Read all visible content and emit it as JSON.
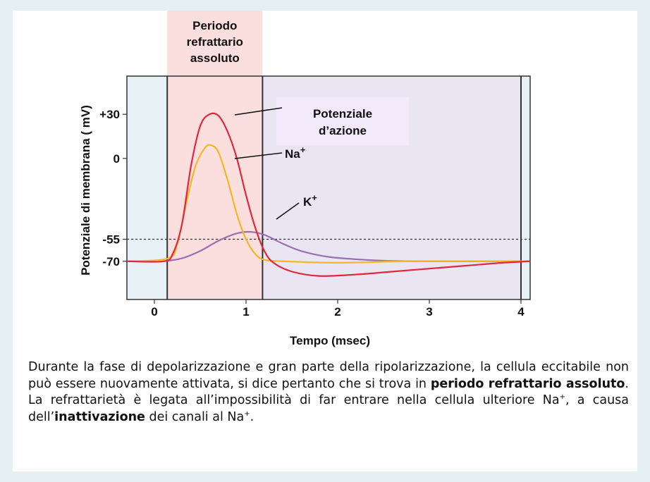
{
  "chart_data": {
    "type": "line",
    "xlabel": "Tempo (msec)",
    "ylabel": "Potenziale di membrana ( mV)",
    "xlim": [
      -0.3,
      4.1
    ],
    "ylim": [
      -96,
      56
    ],
    "x_ticks": [
      {
        "value": 0,
        "label": "0"
      },
      {
        "value": 1,
        "label": "1"
      },
      {
        "value": 2,
        "label": "2"
      },
      {
        "value": 3,
        "label": "3"
      },
      {
        "value": 4,
        "label": "4"
      }
    ],
    "y_ticks": [
      {
        "value": 30,
        "label": "+30"
      },
      {
        "value": 0,
        "label": "0"
      },
      {
        "value": -55,
        "label": "-55"
      },
      {
        "value": -70,
        "label": "-70"
      }
    ],
    "threshold": -55,
    "vertical_lines": [
      0.14,
      1.18,
      4.0
    ],
    "refractory_period": {
      "start": 0.14,
      "end": 1.18,
      "label": [
        "Periodo",
        "refrattario",
        "assoluto"
      ]
    },
    "relative_period": {
      "start": 1.18,
      "end": 4.0
    },
    "series": [
      {
        "name": "Potenziale d'azione",
        "color": "#e0283c",
        "points": [
          [
            -0.3,
            -70
          ],
          [
            0.1,
            -70
          ],
          [
            0.2,
            -65
          ],
          [
            0.3,
            -45
          ],
          [
            0.4,
            -5
          ],
          [
            0.5,
            22
          ],
          [
            0.6,
            30
          ],
          [
            0.7,
            29
          ],
          [
            0.8,
            18
          ],
          [
            0.9,
            0
          ],
          [
            1.0,
            -25
          ],
          [
            1.1,
            -47
          ],
          [
            1.2,
            -63
          ],
          [
            1.3,
            -71
          ],
          [
            1.5,
            -77
          ],
          [
            1.8,
            -80
          ],
          [
            2.2,
            -79
          ],
          [
            2.6,
            -77
          ],
          [
            3.0,
            -75
          ],
          [
            3.4,
            -73
          ],
          [
            3.8,
            -71
          ],
          [
            4.1,
            -70
          ]
        ]
      },
      {
        "name": "Na+",
        "color": "#f2b824",
        "points": [
          [
            -0.3,
            -70
          ],
          [
            0.15,
            -68
          ],
          [
            0.25,
            -58
          ],
          [
            0.35,
            -30
          ],
          [
            0.45,
            -5
          ],
          [
            0.55,
            7
          ],
          [
            0.62,
            9
          ],
          [
            0.7,
            4
          ],
          [
            0.8,
            -15
          ],
          [
            0.9,
            -38
          ],
          [
            1.0,
            -55
          ],
          [
            1.1,
            -65
          ],
          [
            1.2,
            -69
          ],
          [
            1.4,
            -70
          ],
          [
            2.0,
            -71
          ],
          [
            2.8,
            -70
          ],
          [
            4.1,
            -70
          ]
        ]
      },
      {
        "name": "K+",
        "color": "#9b6fb2",
        "points": [
          [
            0.1,
            -70
          ],
          [
            0.3,
            -68
          ],
          [
            0.5,
            -63
          ],
          [
            0.7,
            -56
          ],
          [
            0.9,
            -51
          ],
          [
            1.05,
            -50
          ],
          [
            1.2,
            -52
          ],
          [
            1.4,
            -58
          ],
          [
            1.6,
            -63
          ],
          [
            1.9,
            -67
          ],
          [
            2.3,
            -69
          ],
          [
            2.8,
            -70
          ],
          [
            4.1,
            -70
          ]
        ]
      }
    ]
  },
  "labels": {
    "potenziale_line1": "Potenziale",
    "potenziale_line2": "d’azione",
    "na_label": "Na",
    "k_label": "K",
    "plus": "+"
  },
  "caption": {
    "part1": "Durante la fase di depolarizzazione e gran parte della ripolarizzazione, la cellula eccitabile non può essere nuovamente attivata, si dice pertanto che si trova in ",
    "bold1": "periodo refrattario assoluto",
    "part2": ". La refrattarietà è legata all’impossibilità di far entrare nella cellula ulteriore Na",
    "sup1": "+",
    "part3": ", a causa dell’",
    "bold2": "inattivazione",
    "part4": " dei canali al Na",
    "sup2": "+",
    "part5": "."
  },
  "colors": {
    "refractory_fill": "#fbdede",
    "relative_fill": "#e9e5f2",
    "pre_fill": "#e7f0f4",
    "label_box_fill": "#f2e9fb",
    "threshold_line": "#333333"
  }
}
